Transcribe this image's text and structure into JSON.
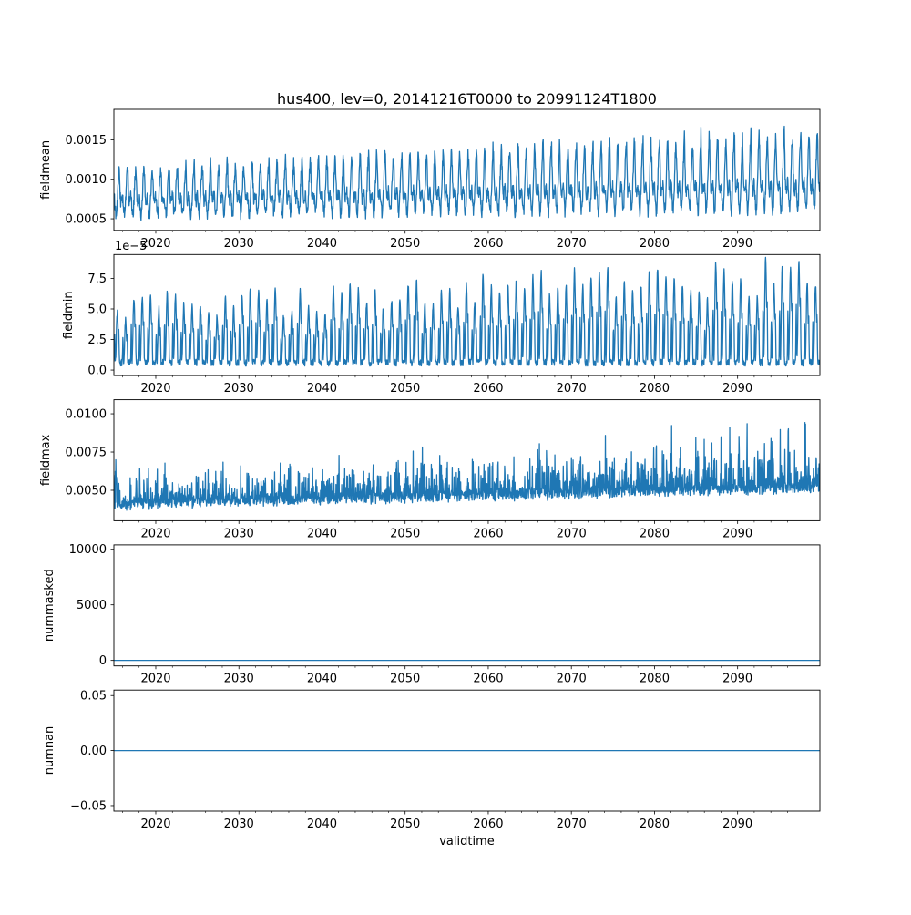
{
  "figure": {
    "title": "hus400, lev=0, 20141216T0000 to 20991124T1800",
    "background": "#ffffff",
    "line_color": "#1f77b4",
    "spine_color": "#000000"
  },
  "x_axis": {
    "label": "validtime",
    "xlim": [
      2014.96,
      2099.9
    ],
    "major_ticks": [
      2020,
      2030,
      2040,
      2050,
      2060,
      2070,
      2080,
      2090
    ],
    "major_tick_labels": [
      "2020",
      "2030",
      "2040",
      "2050",
      "2060",
      "2070",
      "2080",
      "2090"
    ],
    "minor_tick_step_years": 2
  },
  "chart_data": [
    {
      "type": "line",
      "ylabel": "fieldmean",
      "ylim": [
        0.000353,
        0.001885
      ],
      "yticks": [
        0.0005,
        0.001,
        0.0015
      ],
      "ytick_labels": [
        "0.0005",
        "0.0010",
        "0.0015"
      ],
      "summary": "annual oscillation band, approx 0.00045-0.00125 in 2015 rising to 0.0005-0.0019 by 2099, increasing trend",
      "synth": {
        "kind": "band",
        "seed": 7,
        "n": 2600,
        "base0": 0.00076,
        "baseSlope": 2.3e-06,
        "amp0": 0.00026,
        "ampSlope": 2.1e-06,
        "noise": 8e-05,
        "spike": 0.9
      }
    },
    {
      "type": "line",
      "ylabel": "fieldmin",
      "offset_text": "1e−5",
      "ylim": [
        -4.5e-06,
        9.45e-05
      ],
      "yticks": [
        0.0,
        2.5e-05,
        5e-05,
        7.5e-05
      ],
      "ytick_labels": [
        "0.0",
        "2.5",
        "5.0",
        "7.5"
      ],
      "summary": "narrow annual spikes from near-zero base, peaks approx 3.5e-5 to 5.8e-5 early, growing to 6e-5 to 9e-5 by 2099",
      "synth": {
        "kind": "spikes",
        "seed": 13,
        "n": 2600,
        "floor0": 3.3e-06,
        "floorNoise": 5.5e-06,
        "amp0": 4.3e-05,
        "ampSlope": 3e-07,
        "p1pow": 2.2,
        "p2frac": 0.62
      }
    },
    {
      "type": "line",
      "ylabel": "fieldmax",
      "ylim": [
        0.00301,
        0.01092
      ],
      "yticks": [
        0.005,
        0.0075,
        0.01
      ],
      "ytick_labels": [
        "0.0050",
        "0.0075",
        "0.0100"
      ],
      "summary": "noisy band approx 0.0035-0.005 with frequent upward spikes to 0.008 early, rising to spikes near 0.0105 by 2099",
      "synth": {
        "kind": "spiky_band",
        "seed": 21,
        "n": 2600,
        "base0": 0.0041,
        "baseSlope": 1.3e-05,
        "noise": 0.00045,
        "spikeAmp0": 0.0028,
        "spikeSlope": 2e-05
      }
    },
    {
      "type": "line",
      "ylabel": "nummasked",
      "ylim": [
        -495,
        10395
      ],
      "yticks": [
        0,
        5000,
        10000
      ],
      "ytick_labels": [
        "0",
        "5000",
        "10000"
      ],
      "summary": "constant flat line at 0 for entire period",
      "synth": {
        "kind": "const",
        "value": 0,
        "n": 2
      }
    },
    {
      "type": "line",
      "ylabel": "numnan",
      "ylim": [
        -0.055,
        0.055
      ],
      "yticks": [
        -0.05,
        0.0,
        0.05
      ],
      "ytick_labels": [
        "−0.05",
        "0.00",
        "0.05"
      ],
      "summary": "constant flat line at 0 for entire period",
      "synth": {
        "kind": "const",
        "value": 0,
        "n": 2
      }
    }
  ]
}
